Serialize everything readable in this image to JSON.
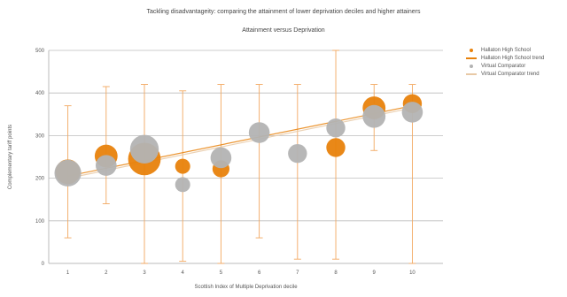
{
  "chart_data": {
    "type": "scatter",
    "title": "Tackling disadvantageity: comparing the attainment of lower deprivation deciles and higher attainers",
    "subtitle": "Attainment versus Deprivation",
    "xlabel": "Scottish Index of Multiple Deprivation decile",
    "ylabel": "Complementary tariff points",
    "xlim": [
      0.5,
      10.8
    ],
    "ylim": [
      0,
      500
    ],
    "x_ticks": [
      1,
      2,
      3,
      4,
      5,
      6,
      7,
      8,
      9,
      10
    ],
    "y_ticks": [
      0,
      100,
      200,
      300,
      400,
      500
    ],
    "grid": "horizontal",
    "legend_position": "right",
    "colors": {
      "school": "#e8820c",
      "comparator": "#b3b3b3",
      "error": "#f2a860",
      "comparator_trend": "#e8c9a6"
    },
    "series": [
      {
        "name": "Hallaton High School",
        "color": "#e8820c",
        "points": [
          {
            "x": 1,
            "y": 215,
            "n": 10
          },
          {
            "x": 2,
            "y": 252,
            "n": 9
          },
          {
            "x": 3,
            "y": 245,
            "n": 14
          },
          {
            "x": 4,
            "y": 228,
            "n": 5
          },
          {
            "x": 5,
            "y": 222,
            "n": 6
          },
          {
            "x": 8,
            "y": 272,
            "n": 7
          },
          {
            "x": 9,
            "y": 365,
            "n": 9
          },
          {
            "x": 10,
            "y": 375,
            "n": 7
          }
        ],
        "error_high": [
          370,
          415,
          420,
          405,
          420,
          null,
          null,
          500,
          420,
          420
        ],
        "error_low": [
          60,
          140,
          0,
          5,
          0,
          null,
          null,
          10,
          265,
          0
        ]
      },
      {
        "name": "Hallaton High School trend",
        "type": "line",
        "color": "#e8820c",
        "x": [
          1,
          10
        ],
        "y": [
          205,
          370
        ]
      },
      {
        "name": "Virtual Comparator",
        "color": "#b3b3b3",
        "points": [
          {
            "x": 1,
            "y": 212,
            "n": 11
          },
          {
            "x": 2,
            "y": 230,
            "n": 8
          },
          {
            "x": 3,
            "y": 268,
            "n": 12
          },
          {
            "x": 4,
            "y": 185,
            "n": 5
          },
          {
            "x": 5,
            "y": 248,
            "n": 8
          },
          {
            "x": 6,
            "y": 307,
            "n": 8
          },
          {
            "x": 7,
            "y": 258,
            "n": 7
          },
          {
            "x": 8,
            "y": 318,
            "n": 7
          },
          {
            "x": 9,
            "y": 345,
            "n": 9
          },
          {
            "x": 10,
            "y": 355,
            "n": 8
          }
        ],
        "error_high": [
          null,
          null,
          null,
          null,
          null,
          420,
          420,
          null,
          null,
          null
        ],
        "error_low": [
          null,
          null,
          null,
          null,
          null,
          60,
          10,
          null,
          null,
          null
        ]
      },
      {
        "name": "Virtual Comparator trend",
        "type": "line",
        "color": "#e8c9a6",
        "x": [
          1,
          10
        ],
        "y": [
          200,
          365
        ]
      }
    ]
  },
  "legend": [
    {
      "label": "Hallaton High School",
      "kind": "dot",
      "color": "#e8820c"
    },
    {
      "label": "Hallaton High School trend",
      "kind": "line",
      "color": "#e8820c"
    },
    {
      "label": "Virtual Comparator",
      "kind": "dot",
      "color": "#b3b3b3"
    },
    {
      "label": "Virtual Comparator trend",
      "kind": "line",
      "color": "#e8c9a6"
    }
  ]
}
